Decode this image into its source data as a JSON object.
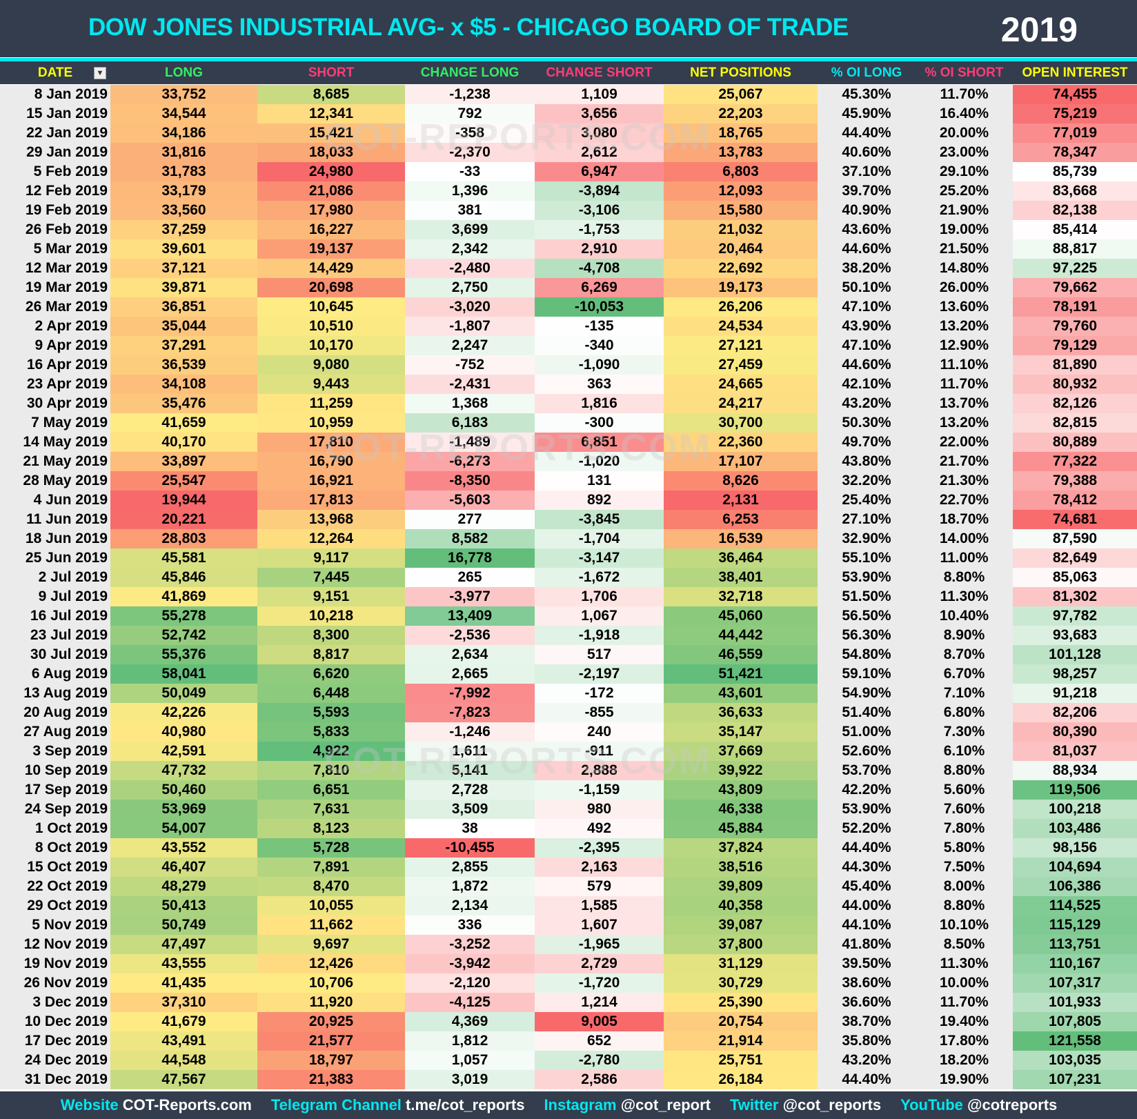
{
  "header": {
    "title": "DOW JONES INDUSTRIAL AVG- x $5 - CHICAGO BOARD OF TRADE",
    "year": "2019"
  },
  "watermark": "COT-REPORTS.COM",
  "columns": [
    {
      "label": "DATE",
      "color": "#ffff00",
      "filter_icon": "filter-icon"
    },
    {
      "label": "LONG",
      "color": "#33ee66"
    },
    {
      "label": "SHORT",
      "color": "#ff3c78"
    },
    {
      "label": "CHANGE LONG",
      "color": "#33ee66"
    },
    {
      "label": "CHANGE SHORT",
      "color": "#ff3c78"
    },
    {
      "label": "NET POSITIONS",
      "color": "#ffff00"
    },
    {
      "label": "% OI LONG",
      "color": "#00e8f0"
    },
    {
      "label": "% OI SHORT",
      "color": "#ff3c78"
    },
    {
      "label": "OPEN INTEREST",
      "color": "#ffff00"
    }
  ],
  "scale_colors": {
    "red": "#f8696b",
    "yellow": "#ffeb84",
    "green": "#63be7b",
    "white": "#ffffff"
  },
  "rows": [
    [
      "8 Jan 2019",
      "33,752",
      "8,685",
      "-1,238",
      "1,109",
      "25,067",
      "45.30%",
      "11.70%",
      "74,455"
    ],
    [
      "15 Jan 2019",
      "34,544",
      "12,341",
      "792",
      "3,656",
      "22,203",
      "45.90%",
      "16.40%",
      "75,219"
    ],
    [
      "22 Jan 2019",
      "34,186",
      "15,421",
      "-358",
      "3,080",
      "18,765",
      "44.40%",
      "20.00%",
      "77,019"
    ],
    [
      "29 Jan 2019",
      "31,816",
      "18,033",
      "-2,370",
      "2,612",
      "13,783",
      "40.60%",
      "23.00%",
      "78,347"
    ],
    [
      "5 Feb 2019",
      "31,783",
      "24,980",
      "-33",
      "6,947",
      "6,803",
      "37.10%",
      "29.10%",
      "85,739"
    ],
    [
      "12 Feb 2019",
      "33,179",
      "21,086",
      "1,396",
      "-3,894",
      "12,093",
      "39.70%",
      "25.20%",
      "83,668"
    ],
    [
      "19 Feb 2019",
      "33,560",
      "17,980",
      "381",
      "-3,106",
      "15,580",
      "40.90%",
      "21.90%",
      "82,138"
    ],
    [
      "26 Feb 2019",
      "37,259",
      "16,227",
      "3,699",
      "-1,753",
      "21,032",
      "43.60%",
      "19.00%",
      "85,414"
    ],
    [
      "5 Mar 2019",
      "39,601",
      "19,137",
      "2,342",
      "2,910",
      "20,464",
      "44.60%",
      "21.50%",
      "88,817"
    ],
    [
      "12 Mar 2019",
      "37,121",
      "14,429",
      "-2,480",
      "-4,708",
      "22,692",
      "38.20%",
      "14.80%",
      "97,225"
    ],
    [
      "19 Mar 2019",
      "39,871",
      "20,698",
      "2,750",
      "6,269",
      "19,173",
      "50.10%",
      "26.00%",
      "79,662"
    ],
    [
      "26 Mar 2019",
      "36,851",
      "10,645",
      "-3,020",
      "-10,053",
      "26,206",
      "47.10%",
      "13.60%",
      "78,191"
    ],
    [
      "2 Apr 2019",
      "35,044",
      "10,510",
      "-1,807",
      "-135",
      "24,534",
      "43.90%",
      "13.20%",
      "79,760"
    ],
    [
      "9 Apr 2019",
      "37,291",
      "10,170",
      "2,247",
      "-340",
      "27,121",
      "47.10%",
      "12.90%",
      "79,129"
    ],
    [
      "16 Apr 2019",
      "36,539",
      "9,080",
      "-752",
      "-1,090",
      "27,459",
      "44.60%",
      "11.10%",
      "81,890"
    ],
    [
      "23 Apr 2019",
      "34,108",
      "9,443",
      "-2,431",
      "363",
      "24,665",
      "42.10%",
      "11.70%",
      "80,932"
    ],
    [
      "30 Apr 2019",
      "35,476",
      "11,259",
      "1,368",
      "1,816",
      "24,217",
      "43.20%",
      "13.70%",
      "82,126"
    ],
    [
      "7 May 2019",
      "41,659",
      "10,959",
      "6,183",
      "-300",
      "30,700",
      "50.30%",
      "13.20%",
      "82,815"
    ],
    [
      "14 May 2019",
      "40,170",
      "17,810",
      "-1,489",
      "6,851",
      "22,360",
      "49.70%",
      "22.00%",
      "80,889"
    ],
    [
      "21 May 2019",
      "33,897",
      "16,790",
      "-6,273",
      "-1,020",
      "17,107",
      "43.80%",
      "21.70%",
      "77,322"
    ],
    [
      "28 May 2019",
      "25,547",
      "16,921",
      "-8,350",
      "131",
      "8,626",
      "32.20%",
      "21.30%",
      "79,388"
    ],
    [
      "4 Jun 2019",
      "19,944",
      "17,813",
      "-5,603",
      "892",
      "2,131",
      "25.40%",
      "22.70%",
      "78,412"
    ],
    [
      "11 Jun 2019",
      "20,221",
      "13,968",
      "277",
      "-3,845",
      "6,253",
      "27.10%",
      "18.70%",
      "74,681"
    ],
    [
      "18 Jun 2019",
      "28,803",
      "12,264",
      "8,582",
      "-1,704",
      "16,539",
      "32.90%",
      "14.00%",
      "87,590"
    ],
    [
      "25 Jun 2019",
      "45,581",
      "9,117",
      "16,778",
      "-3,147",
      "36,464",
      "55.10%",
      "11.00%",
      "82,649"
    ],
    [
      "2 Jul 2019",
      "45,846",
      "7,445",
      "265",
      "-1,672",
      "38,401",
      "53.90%",
      "8.80%",
      "85,063"
    ],
    [
      "9 Jul 2019",
      "41,869",
      "9,151",
      "-3,977",
      "1,706",
      "32,718",
      "51.50%",
      "11.30%",
      "81,302"
    ],
    [
      "16 Jul 2019",
      "55,278",
      "10,218",
      "13,409",
      "1,067",
      "45,060",
      "56.50%",
      "10.40%",
      "97,782"
    ],
    [
      "23 Jul 2019",
      "52,742",
      "8,300",
      "-2,536",
      "-1,918",
      "44,442",
      "56.30%",
      "8.90%",
      "93,683"
    ],
    [
      "30 Jul 2019",
      "55,376",
      "8,817",
      "2,634",
      "517",
      "46,559",
      "54.80%",
      "8.70%",
      "101,128"
    ],
    [
      "6 Aug 2019",
      "58,041",
      "6,620",
      "2,665",
      "-2,197",
      "51,421",
      "59.10%",
      "6.70%",
      "98,257"
    ],
    [
      "13 Aug 2019",
      "50,049",
      "6,448",
      "-7,992",
      "-172",
      "43,601",
      "54.90%",
      "7.10%",
      "91,218"
    ],
    [
      "20 Aug 2019",
      "42,226",
      "5,593",
      "-7,823",
      "-855",
      "36,633",
      "51.40%",
      "6.80%",
      "82,206"
    ],
    [
      "27 Aug 2019",
      "40,980",
      "5,833",
      "-1,246",
      "240",
      "35,147",
      "51.00%",
      "7.30%",
      "80,390"
    ],
    [
      "3 Sep 2019",
      "42,591",
      "4,922",
      "1,611",
      "-911",
      "37,669",
      "52.60%",
      "6.10%",
      "81,037"
    ],
    [
      "10 Sep 2019",
      "47,732",
      "7,810",
      "5,141",
      "2,888",
      "39,922",
      "53.70%",
      "8.80%",
      "88,934"
    ],
    [
      "17 Sep 2019",
      "50,460",
      "6,651",
      "2,728",
      "-1,159",
      "43,809",
      "42.20%",
      "5.60%",
      "119,506"
    ],
    [
      "24 Sep 2019",
      "53,969",
      "7,631",
      "3,509",
      "980",
      "46,338",
      "53.90%",
      "7.60%",
      "100,218"
    ],
    [
      "1 Oct 2019",
      "54,007",
      "8,123",
      "38",
      "492",
      "45,884",
      "52.20%",
      "7.80%",
      "103,486"
    ],
    [
      "8 Oct 2019",
      "43,552",
      "5,728",
      "-10,455",
      "-2,395",
      "37,824",
      "44.40%",
      "5.80%",
      "98,156"
    ],
    [
      "15 Oct 2019",
      "46,407",
      "7,891",
      "2,855",
      "2,163",
      "38,516",
      "44.30%",
      "7.50%",
      "104,694"
    ],
    [
      "22 Oct 2019",
      "48,279",
      "8,470",
      "1,872",
      "579",
      "39,809",
      "45.40%",
      "8.00%",
      "106,386"
    ],
    [
      "29 Oct 2019",
      "50,413",
      "10,055",
      "2,134",
      "1,585",
      "40,358",
      "44.00%",
      "8.80%",
      "114,525"
    ],
    [
      "5 Nov 2019",
      "50,749",
      "11,662",
      "336",
      "1,607",
      "39,087",
      "44.10%",
      "10.10%",
      "115,129"
    ],
    [
      "12 Nov 2019",
      "47,497",
      "9,697",
      "-3,252",
      "-1,965",
      "37,800",
      "41.80%",
      "8.50%",
      "113,751"
    ],
    [
      "19 Nov 2019",
      "43,555",
      "12,426",
      "-3,942",
      "2,729",
      "31,129",
      "39.50%",
      "11.30%",
      "110,167"
    ],
    [
      "26 Nov 2019",
      "41,435",
      "10,706",
      "-2,120",
      "-1,720",
      "30,729",
      "38.60%",
      "10.00%",
      "107,317"
    ],
    [
      "3 Dec 2019",
      "37,310",
      "11,920",
      "-4,125",
      "1,214",
      "25,390",
      "36.60%",
      "11.70%",
      "101,933"
    ],
    [
      "10 Dec 2019",
      "41,679",
      "20,925",
      "4,369",
      "9,005",
      "20,754",
      "38.70%",
      "19.40%",
      "107,805"
    ],
    [
      "17 Dec 2019",
      "43,491",
      "21,577",
      "1,812",
      "652",
      "21,914",
      "35.80%",
      "17.80%",
      "121,558"
    ],
    [
      "24 Dec 2019",
      "44,548",
      "18,797",
      "1,057",
      "-2,780",
      "25,751",
      "43.20%",
      "18.20%",
      "103,035"
    ],
    [
      "31 Dec 2019",
      "47,567",
      "21,383",
      "3,019",
      "2,586",
      "26,184",
      "44.40%",
      "19.90%",
      "107,231"
    ]
  ],
  "footer": [
    {
      "label": "Website",
      "value": "COT-Reports.com"
    },
    {
      "label": "Telegram Channel",
      "value": "t.me/cot_reports"
    },
    {
      "label": "Instagram",
      "value": "@cot_report"
    },
    {
      "label": "Twitter",
      "value": "@cot_reports"
    },
    {
      "label": "YouTube",
      "value": "@cotreports"
    }
  ]
}
